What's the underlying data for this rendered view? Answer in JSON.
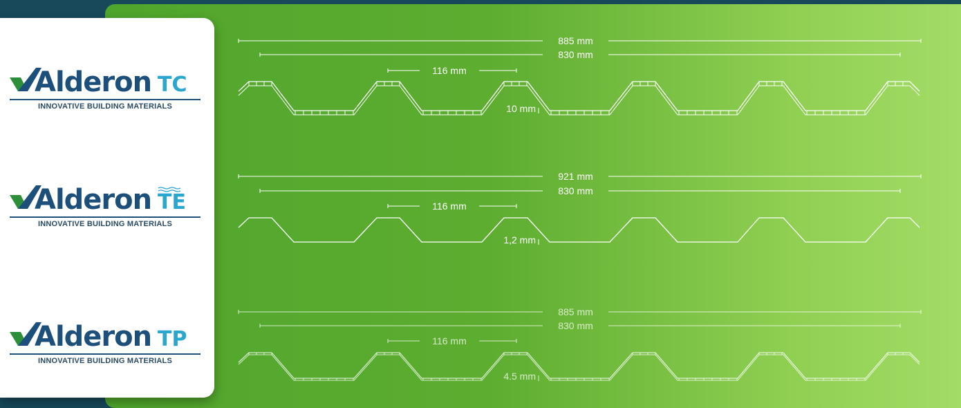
{
  "logos": [
    {
      "brand": "Alderon",
      "suffix": "TC",
      "tagline": "INNOVATIVE BUILDING MATERIALS"
    },
    {
      "brand": "Alderon",
      "suffix": "TE",
      "tagline": "INNOVATIVE BUILDING MATERIALS"
    },
    {
      "brand": "Alderon",
      "suffix": "TP",
      "tagline": "INNOVATIVE BUILDING MATERIALS"
    }
  ],
  "profiles": [
    {
      "total_width": "885 mm",
      "effective_width": "830 mm",
      "pitch": "116 mm",
      "thickness": "10 mm",
      "style": "multiwall"
    },
    {
      "total_width": "921 mm",
      "effective_width": "830 mm",
      "pitch": "116 mm",
      "thickness": "1,2 mm",
      "style": "solid"
    },
    {
      "total_width": "885 mm",
      "effective_width": "830 mm",
      "pitch": "116 mm",
      "thickness": "4.5 mm",
      "style": "thin-multiwall"
    }
  ],
  "colors": {
    "brand_dark": "#1c4f79",
    "brand_light": "#2aa6cf",
    "panel_green": "#5dad30",
    "background": "#17495a"
  }
}
